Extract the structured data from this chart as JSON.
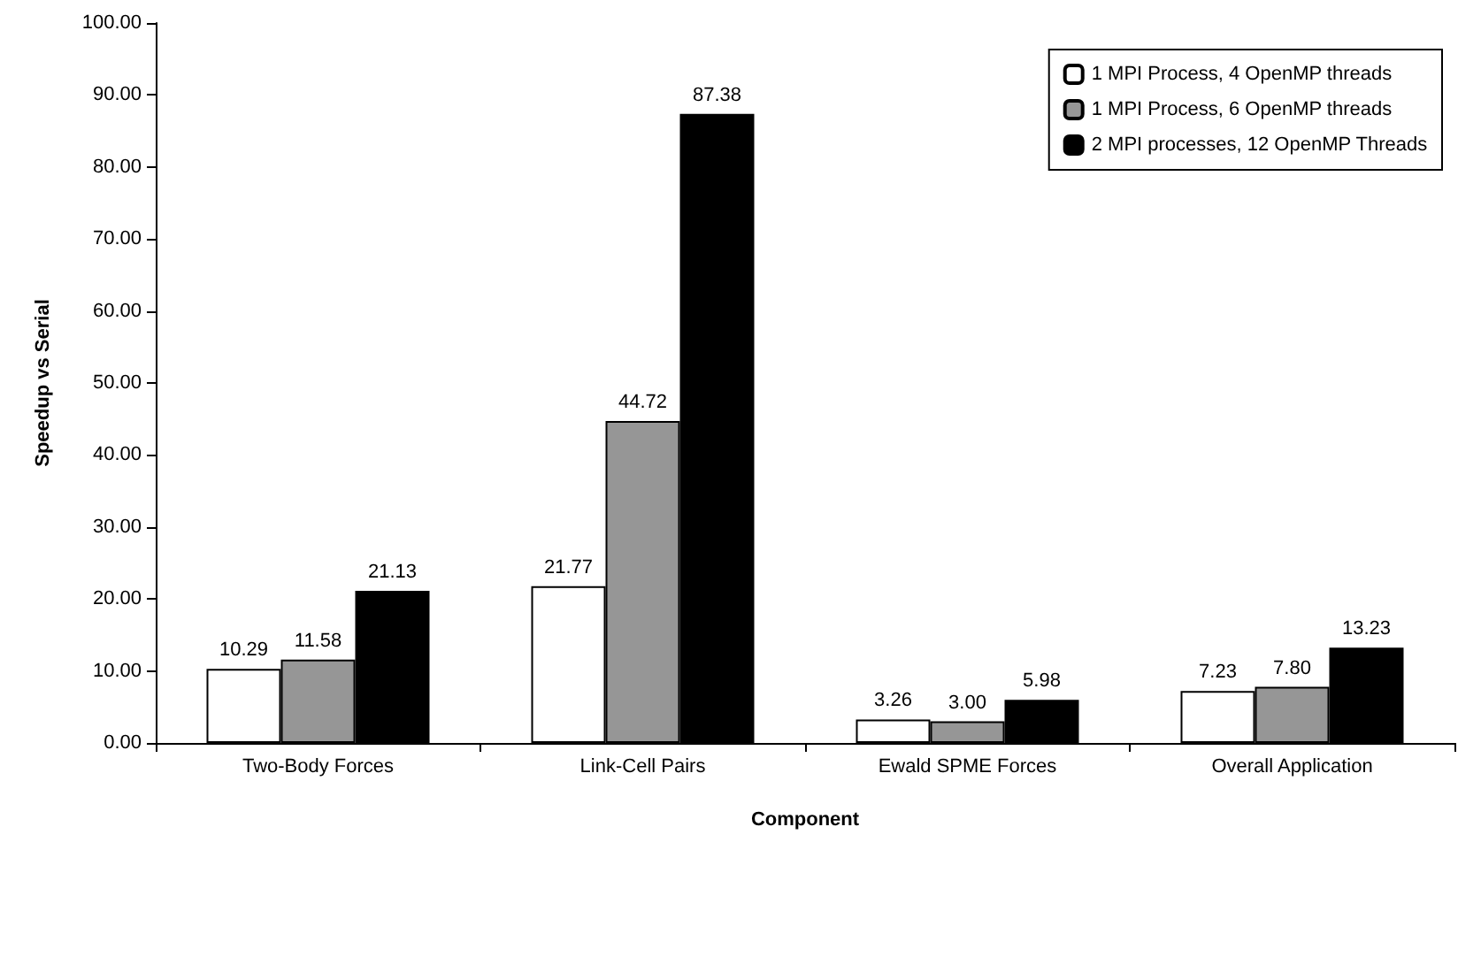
{
  "chart_data": {
    "type": "bar",
    "xlabel": "Component",
    "ylabel": "Speedup vs Serial",
    "categories": [
      "Two-Body Forces",
      "Link-Cell Pairs",
      "Ewald SPME Forces",
      "Overall Application"
    ],
    "series": [
      {
        "name": "1 MPI Process, 4 OpenMP threads",
        "color": "#ffffff",
        "values": [
          10.29,
          21.77,
          3.26,
          7.23
        ],
        "value_labels": [
          "10.29",
          "21.77",
          "3.26",
          "7.23"
        ]
      },
      {
        "name": "1 MPI Process, 6 OpenMP threads",
        "color": "#969696",
        "values": [
          11.58,
          44.72,
          3.0,
          7.8
        ],
        "value_labels": [
          "11.58",
          "44.72",
          "3.00",
          "7.80"
        ]
      },
      {
        "name": "2 MPI processes, 12 OpenMP Threads",
        "color": "#000000",
        "values": [
          21.13,
          87.38,
          5.98,
          13.23
        ],
        "value_labels": [
          "21.13",
          "87.38",
          "5.98",
          "13.23"
        ]
      }
    ],
    "ylim": [
      0,
      100
    ],
    "yticks": [
      {
        "value": 0,
        "label": "0.00"
      },
      {
        "value": 10,
        "label": "10.00"
      },
      {
        "value": 20,
        "label": "20.00"
      },
      {
        "value": 30,
        "label": "30.00"
      },
      {
        "value": 40,
        "label": "40.00"
      },
      {
        "value": 50,
        "label": "50.00"
      },
      {
        "value": 60,
        "label": "60.00"
      },
      {
        "value": 70,
        "label": "70.00"
      },
      {
        "value": 80,
        "label": "80.00"
      },
      {
        "value": 90,
        "label": "90.00"
      },
      {
        "value": 100,
        "label": "100.00"
      }
    ],
    "grid": false,
    "legend": "top right"
  }
}
